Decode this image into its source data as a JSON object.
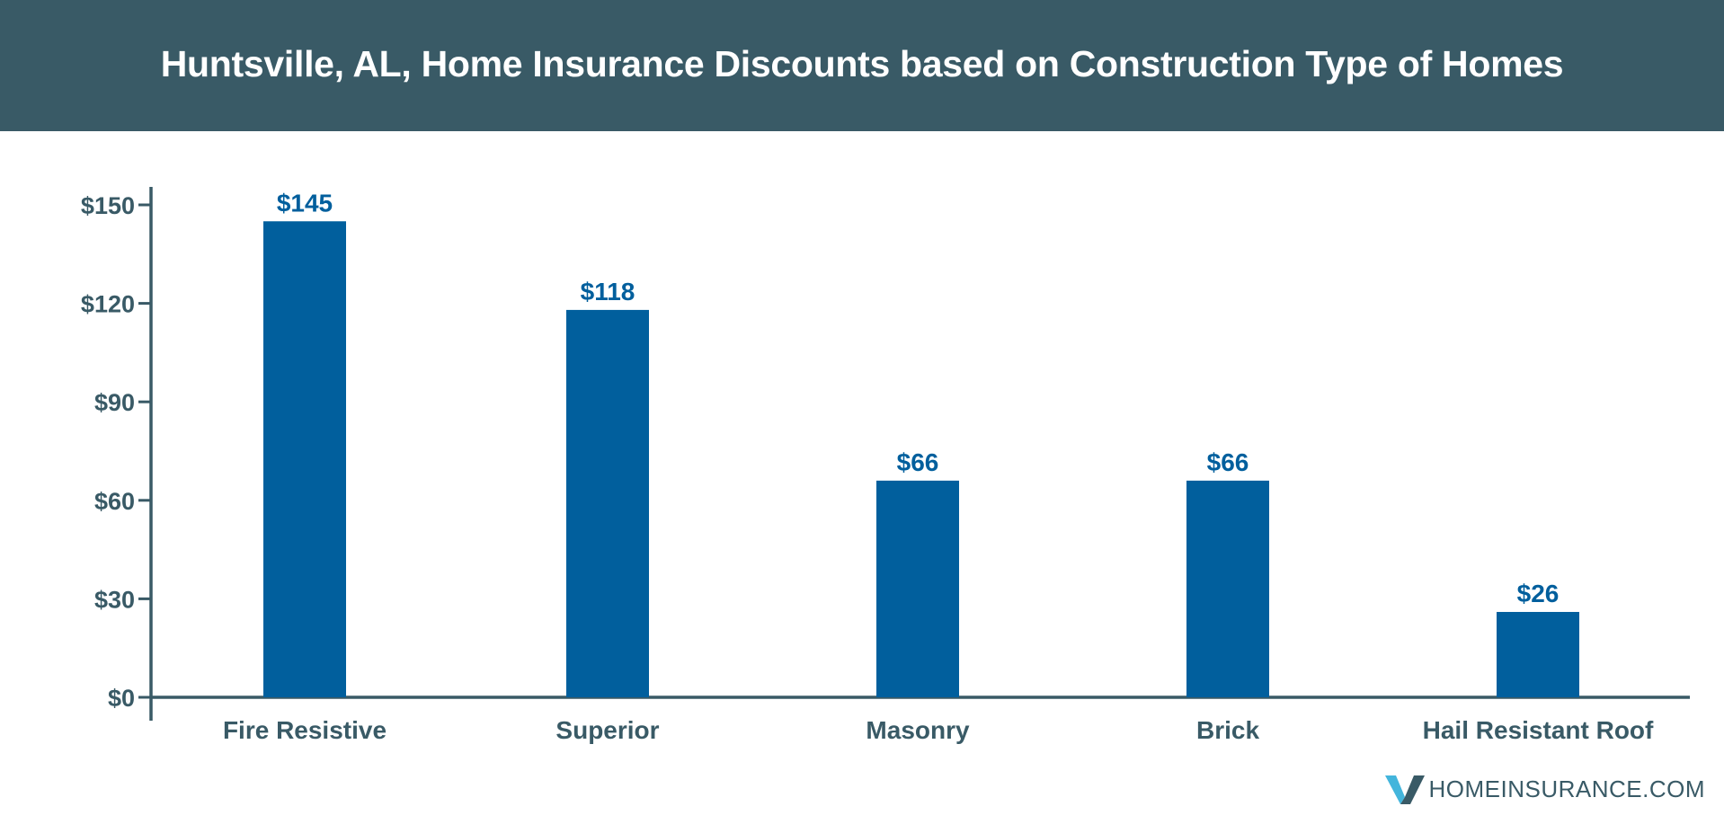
{
  "header": {
    "title": "Huntsville, AL, Home Insurance Discounts based on Construction Type of Homes"
  },
  "colors": {
    "header_bg": "#395a66",
    "bar": "#015f9d",
    "axis": "#395a66",
    "value_label": "#015f9d",
    "logo_accent": "#43b5dc"
  },
  "chart_data": {
    "type": "bar",
    "categories": [
      "Fire Resistive",
      "Superior",
      "Masonry",
      "Brick",
      "Hail Resistant Roof"
    ],
    "values": [
      145,
      118,
      66,
      66,
      26
    ],
    "value_labels": [
      "$145",
      "$118",
      "$66",
      "$66",
      "$26"
    ],
    "title": "Huntsville, AL, Home Insurance Discounts based on Construction Type of Homes",
    "xlabel": "",
    "ylabel": "",
    "ylim": [
      0,
      150
    ],
    "yticks": [
      0,
      30,
      60,
      90,
      120,
      150
    ],
    "ytick_labels": [
      "$0",
      "$30",
      "$60",
      "$90",
      "$120",
      "$150"
    ],
    "grid": false,
    "legend": "none"
  },
  "logo": {
    "text": "HOMEINSURANCE.COM",
    "icon": "v-check-logo-icon"
  }
}
